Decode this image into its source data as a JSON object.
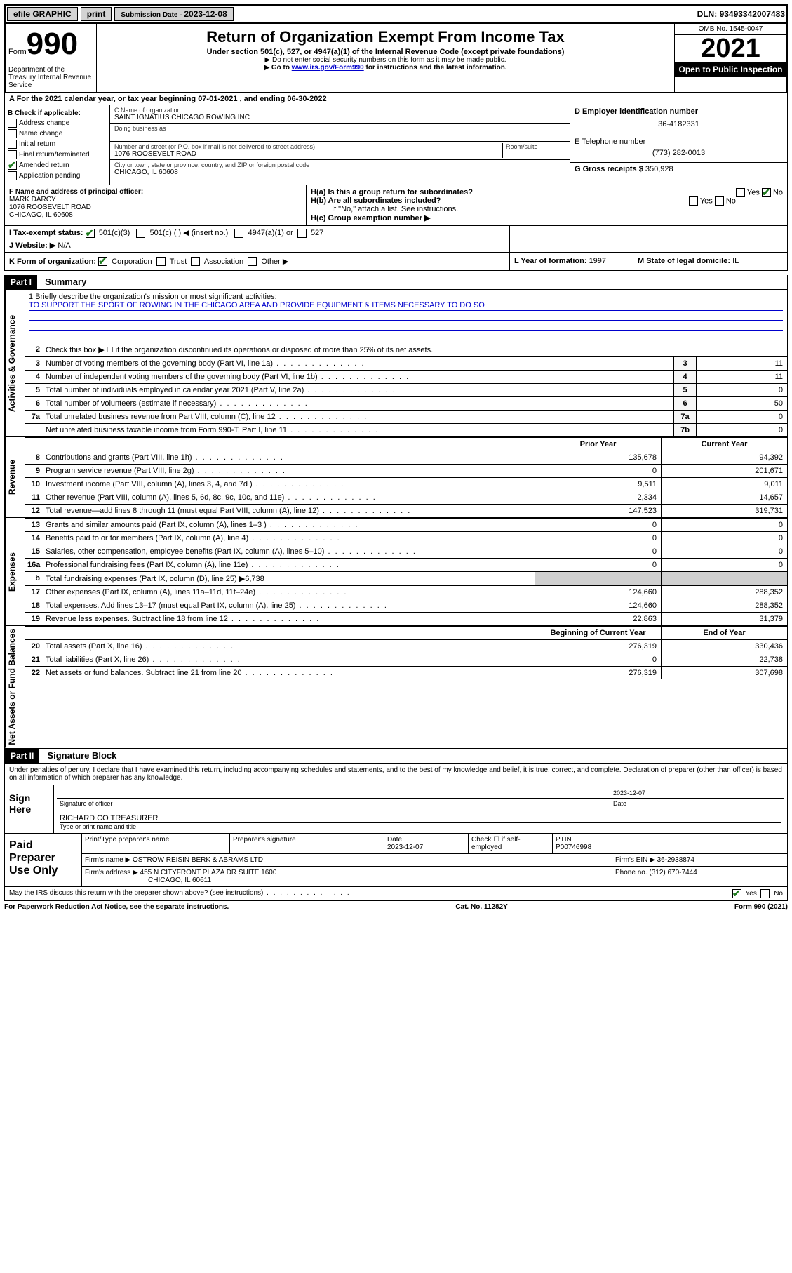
{
  "topbar": {
    "efile": "efile GRAPHIC",
    "print": "print",
    "submission_label": "Submission Date - ",
    "submission_date": "2023-12-08",
    "dln_label": "DLN: ",
    "dln": "93493342007483"
  },
  "header": {
    "form": "Form",
    "form_number": "990",
    "dept": "Department of the Treasury Internal Revenue Service",
    "title": "Return of Organization Exempt From Income Tax",
    "subtitle": "Under section 501(c), 527, or 4947(a)(1) of the Internal Revenue Code (except private foundations)",
    "sub2": "▶ Do not enter social security numbers on this form as it may be made public.",
    "sub3_prefix": "▶ Go to ",
    "sub3_link": "www.irs.gov/Form990",
    "sub3_suffix": " for instructions and the latest information.",
    "omb": "OMB No. 1545-0047",
    "year": "2021",
    "open": "Open to Public Inspection"
  },
  "row_a": "A For the 2021 calendar year, or tax year beginning 07-01-2021 , and ending 06-30-2022",
  "col_b": {
    "title": "B Check if applicable:",
    "items": [
      "Address change",
      "Name change",
      "Initial return",
      "Final return/terminated",
      "Amended return",
      "Application pending"
    ],
    "checked_index": 4
  },
  "col_c": {
    "name_label": "C Name of organization",
    "name": "SAINT IGNATIUS CHICAGO ROWING INC",
    "dba_label": "Doing business as",
    "street_label": "Number and street (or P.O. box if mail is not delivered to street address)",
    "room_label": "Room/suite",
    "street": "1076 ROOSEVELT ROAD",
    "city_label": "City or town, state or province, country, and ZIP or foreign postal code",
    "city": "CHICAGO, IL  60608"
  },
  "col_d": {
    "ein_label": "D Employer identification number",
    "ein": "36-4182331",
    "tel_label": "E Telephone number",
    "tel": "(773) 282-0013",
    "gross_label": "G Gross receipts $ ",
    "gross": "350,928"
  },
  "section_f": {
    "label": "F Name and address of principal officer:",
    "name": "MARK DARCY",
    "street": "1076 ROOSEVELT ROAD",
    "city": "CHICAGO, IL  60608"
  },
  "section_h": {
    "ha": "H(a)  Is this a group return for subordinates?",
    "ha_yes": "Yes",
    "ha_no": "No",
    "hb": "H(b)  Are all subordinates included?",
    "hb_yes": "Yes",
    "hb_no": "No",
    "hb_note": "If \"No,\" attach a list. See instructions.",
    "hc": "H(c)  Group exemption number ▶"
  },
  "row_i": {
    "label": "I    Tax-exempt status:",
    "opts": [
      "501(c)(3)",
      "501(c) (  ) ◀ (insert no.)",
      "4947(a)(1) or",
      "527"
    ]
  },
  "row_j": {
    "label": "J    Website: ▶",
    "val": "N/A"
  },
  "row_k": {
    "label": "K Form of organization:",
    "opts": [
      "Corporation",
      "Trust",
      "Association",
      "Other ▶"
    ]
  },
  "row_l": {
    "label": "L Year of formation: ",
    "val": "1997"
  },
  "row_m": {
    "label": "M State of legal domicile: ",
    "val": "IL"
  },
  "parts": {
    "p1": "Part I",
    "p1_title": "Summary",
    "p2": "Part II",
    "p2_title": "Signature Block"
  },
  "mission": {
    "line1_label": "1   Briefly describe the organization's mission or most significant activities:",
    "text": "TO SUPPORT THE SPORT OF ROWING IN THE CHICAGO AREA AND PROVIDE EQUIPMENT & ITEMS NECESSARY TO DO SO"
  },
  "governance_lines": [
    {
      "n": "2",
      "d": "Check this box ▶ ☐ if the organization discontinued its operations or disposed of more than 25% of its net assets.",
      "no_val": true
    },
    {
      "n": "3",
      "d": "Number of voting members of the governing body (Part VI, line 1a)",
      "box": "3",
      "v": "11"
    },
    {
      "n": "4",
      "d": "Number of independent voting members of the governing body (Part VI, line 1b)",
      "box": "4",
      "v": "11"
    },
    {
      "n": "5",
      "d": "Total number of individuals employed in calendar year 2021 (Part V, line 2a)",
      "box": "5",
      "v": "0"
    },
    {
      "n": "6",
      "d": "Total number of volunteers (estimate if necessary)",
      "box": "6",
      "v": "50"
    },
    {
      "n": "7a",
      "d": "Total unrelated business revenue from Part VIII, column (C), line 12",
      "box": "7a",
      "v": "0"
    },
    {
      "n": "",
      "d": "Net unrelated business taxable income from Form 990-T, Part I, line 11",
      "box": "7b",
      "v": "0"
    }
  ],
  "col_headers": {
    "prior": "Prior Year",
    "current": "Current Year",
    "boy": "Beginning of Current Year",
    "eoy": "End of Year"
  },
  "revenue_lines": [
    {
      "n": "8",
      "d": "Contributions and grants (Part VIII, line 1h)",
      "p": "135,678",
      "c": "94,392"
    },
    {
      "n": "9",
      "d": "Program service revenue (Part VIII, line 2g)",
      "p": "0",
      "c": "201,671"
    },
    {
      "n": "10",
      "d": "Investment income (Part VIII, column (A), lines 3, 4, and 7d )",
      "p": "9,511",
      "c": "9,011"
    },
    {
      "n": "11",
      "d": "Other revenue (Part VIII, column (A), lines 5, 6d, 8c, 9c, 10c, and 11e)",
      "p": "2,334",
      "c": "14,657"
    },
    {
      "n": "12",
      "d": "Total revenue—add lines 8 through 11 (must equal Part VIII, column (A), line 12)",
      "p": "147,523",
      "c": "319,731"
    }
  ],
  "expense_lines": [
    {
      "n": "13",
      "d": "Grants and similar amounts paid (Part IX, column (A), lines 1–3 )",
      "p": "0",
      "c": "0"
    },
    {
      "n": "14",
      "d": "Benefits paid to or for members (Part IX, column (A), line 4)",
      "p": "0",
      "c": "0"
    },
    {
      "n": "15",
      "d": "Salaries, other compensation, employee benefits (Part IX, column (A), lines 5–10)",
      "p": "0",
      "c": "0"
    },
    {
      "n": "16a",
      "d": "Professional fundraising fees (Part IX, column (A), line 11e)",
      "p": "0",
      "c": "0"
    },
    {
      "n": "b",
      "d": "Total fundraising expenses (Part IX, column (D), line 25) ▶6,738",
      "gray": true
    },
    {
      "n": "17",
      "d": "Other expenses (Part IX, column (A), lines 11a–11d, 11f–24e)",
      "p": "124,660",
      "c": "288,352"
    },
    {
      "n": "18",
      "d": "Total expenses. Add lines 13–17 (must equal Part IX, column (A), line 25)",
      "p": "124,660",
      "c": "288,352"
    },
    {
      "n": "19",
      "d": "Revenue less expenses. Subtract line 18 from line 12",
      "p": "22,863",
      "c": "31,379"
    }
  ],
  "netassets_lines": [
    {
      "n": "20",
      "d": "Total assets (Part X, line 16)",
      "p": "276,319",
      "c": "330,436"
    },
    {
      "n": "21",
      "d": "Total liabilities (Part X, line 26)",
      "p": "0",
      "c": "22,738"
    },
    {
      "n": "22",
      "d": "Net assets or fund balances. Subtract line 21 from line 20",
      "p": "276,319",
      "c": "307,698"
    }
  ],
  "sidelabels": {
    "gov": "Activities & Governance",
    "rev": "Revenue",
    "exp": "Expenses",
    "net": "Net Assets or Fund Balances"
  },
  "penalties": "Under penalties of perjury, I declare that I have examined this return, including accompanying schedules and statements, and to the best of my knowledge and belief, it is true, correct, and complete. Declaration of preparer (other than officer) is based on all information of which preparer has any knowledge.",
  "sign": {
    "side": "Sign Here",
    "sig_label": "Signature of officer",
    "date_label": "Date",
    "date": "2023-12-07",
    "name": "RICHARD CO  TREASURER",
    "name_label": "Type or print name and title"
  },
  "prep": {
    "side": "Paid Preparer Use Only",
    "r1_labels": [
      "Print/Type preparer's name",
      "Preparer's signature",
      "Date",
      "Check ☐ if self-employed",
      "PTIN"
    ],
    "r1_date": "2023-12-07",
    "r1_ptin": "P00746998",
    "firm_label": "Firm's name    ▶ ",
    "firm": "OSTROW REISIN BERK & ABRAMS LTD",
    "ein_label": "Firm's EIN ▶ ",
    "ein": "36-2938874",
    "addr_label": "Firm's address ▶ ",
    "addr1": "455 N CITYFRONT PLAZA DR SUITE 1600",
    "addr2": "CHICAGO, IL  60611",
    "phone_label": "Phone no. ",
    "phone": "(312) 670-7444"
  },
  "footer": {
    "q": "May the IRS discuss this return with the preparer shown above? (see instructions)",
    "yes": "Yes",
    "no": "No",
    "notice": "For Paperwork Reduction Act Notice, see the separate instructions.",
    "cat": "Cat. No. 11282Y",
    "form": "Form 990 (2021)"
  }
}
